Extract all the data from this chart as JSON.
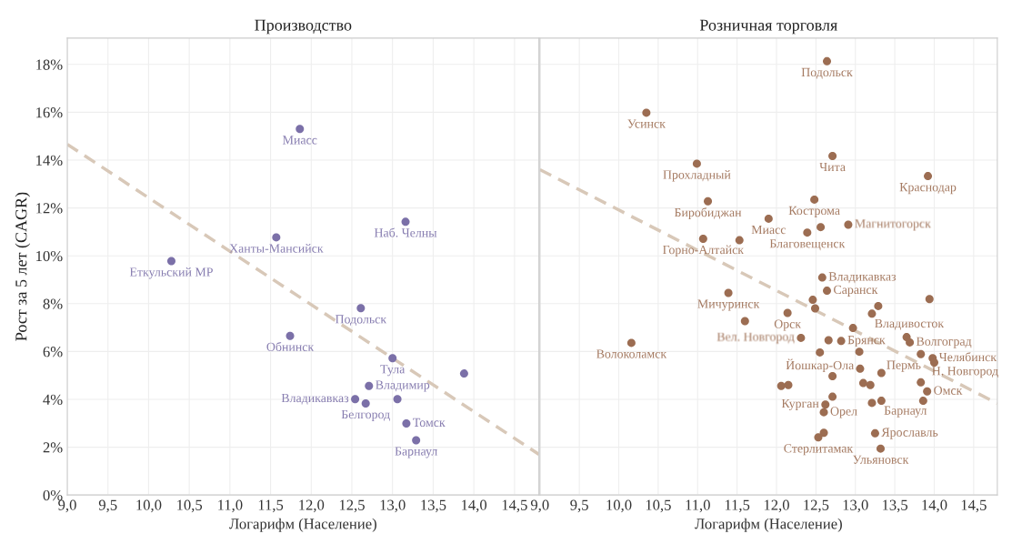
{
  "chart_data": [
    {
      "type": "scatter",
      "title": "Производство",
      "xlabel": "Логарифм (Население)",
      "ylabel": "Рост за 5 лет (CAGR)",
      "xlim": [
        9.0,
        14.8
      ],
      "ylim": [
        0,
        19.1
      ],
      "xticks": [
        {
          "value": 9.0,
          "label": "9,0"
        },
        {
          "value": 9.5,
          "label": "9,5"
        },
        {
          "value": 10.0,
          "label": "10,0"
        },
        {
          "value": 10.5,
          "label": "10,5"
        },
        {
          "value": 11.0,
          "label": "11,0"
        },
        {
          "value": 11.5,
          "label": "11,5"
        },
        {
          "value": 12.0,
          "label": "12,0"
        },
        {
          "value": 12.5,
          "label": "12,5"
        },
        {
          "value": 13.0,
          "label": "13,0"
        },
        {
          "value": 13.5,
          "label": "13,5"
        },
        {
          "value": 14.0,
          "label": "14,0"
        },
        {
          "value": 14.5,
          "label": "14,5"
        }
      ],
      "yticks": [
        {
          "value": 0,
          "label": "0%"
        },
        {
          "value": 2,
          "label": "2%"
        },
        {
          "value": 4,
          "label": "4%"
        },
        {
          "value": 6,
          "label": "6%"
        },
        {
          "value": 8,
          "label": "8%"
        },
        {
          "value": 10,
          "label": "10%"
        },
        {
          "value": 12,
          "label": "12%"
        },
        {
          "value": 14,
          "label": "14%"
        },
        {
          "value": 16,
          "label": "16%"
        },
        {
          "value": 18,
          "label": "18%"
        }
      ],
      "grid": true,
      "legend": false,
      "marker": "circle",
      "series": [
        {
          "type": "scatter",
          "color": "#7b70a8",
          "x": [
            11.86,
            11.57,
            13.16,
            10.28,
            12.61,
            11.74,
            13.0,
            13.88,
            12.71,
            12.54,
            12.67,
            13.06,
            13.17,
            13.29
          ],
          "values": [
            15.3,
            10.77,
            11.42,
            9.78,
            7.81,
            6.65,
            5.72,
            5.08,
            4.56,
            4.01,
            3.83,
            4.01,
            2.99,
            2.29
          ]
        },
        {
          "type": "line",
          "color": "#d8c8b8",
          "line_style": "dashed",
          "marker": "none",
          "x": [
            9.0,
            14.8
          ],
          "values": [
            14.66,
            1.7
          ]
        }
      ],
      "annotations": [
        {
          "text": "Миасс",
          "x": 11.86,
          "y": 15.3
        },
        {
          "text": "Ханты-Мансийск",
          "x": 11.57,
          "y": 10.77
        },
        {
          "text": "Наб. Челны",
          "x": 13.16,
          "y": 11.42
        },
        {
          "text": "Еткульский МР",
          "x": 10.28,
          "y": 9.78
        },
        {
          "text": "Подольск",
          "x": 12.61,
          "y": 7.81
        },
        {
          "text": "Обнинск",
          "x": 11.74,
          "y": 6.65
        },
        {
          "text": "Тула",
          "x": 13.0,
          "y": 5.72
        },
        {
          "text": "Владимир",
          "x": 12.71,
          "y": 4.56
        },
        {
          "text": "Владикавказ",
          "x": 12.54,
          "y": 4.01
        },
        {
          "text": "Белгород",
          "x": 12.67,
          "y": 3.83
        },
        {
          "text": "Томск",
          "x": 13.17,
          "y": 2.99
        },
        {
          "text": "Барнаул",
          "x": 13.29,
          "y": 2.29
        }
      ]
    },
    {
      "type": "scatter",
      "title": "Розничная торговля",
      "xlabel": "Логарифм (Население)",
      "xlim": [
        9.0,
        14.8
      ],
      "ylim": [
        0,
        19.1
      ],
      "tick_labels": "x",
      "xticks": [
        {
          "value": 9.0,
          "label": "9,0"
        },
        {
          "value": 9.5,
          "label": "9,5"
        },
        {
          "value": 10.0,
          "label": "10,0"
        },
        {
          "value": 10.5,
          "label": "10,5"
        },
        {
          "value": 11.0,
          "label": "11,0"
        },
        {
          "value": 11.5,
          "label": "11,5"
        },
        {
          "value": 12.0,
          "label": "12,0"
        },
        {
          "value": 12.5,
          "label": "12,5"
        },
        {
          "value": 13.0,
          "label": "13,0"
        },
        {
          "value": 13.5,
          "label": "13,5"
        },
        {
          "value": 14.0,
          "label": "14,0"
        },
        {
          "value": 14.5,
          "label": "14,5"
        }
      ],
      "grid": true,
      "legend": false,
      "marker": "circle",
      "series": [
        {
          "type": "scatter",
          "color": "#9c6d52",
          "x": [
            12.64,
            10.35,
            12.71,
            10.99,
            13.92,
            11.13,
            12.48,
            11.9,
            12.56,
            12.91,
            12.39,
            11.07,
            11.53,
            12.58,
            12.64,
            11.39,
            13.94,
            12.46,
            13.29,
            12.49,
            12.14,
            13.21,
            11.6,
            12.97,
            12.31,
            12.66,
            12.82,
            13.65,
            13.69,
            10.16,
            12.55,
            13.05,
            13.83,
            13.98,
            14.0,
            13.06,
            13.33,
            12.71,
            13.1,
            13.19,
            13.83,
            12.06,
            12.15,
            13.91,
            12.71,
            13.33,
            13.86,
            12.62,
            13.21,
            12.6,
            13.25,
            12.6,
            12.53,
            13.32
          ],
          "values": [
            18.13,
            15.98,
            14.17,
            13.85,
            13.33,
            12.28,
            12.35,
            11.55,
            11.2,
            11.3,
            10.97,
            10.71,
            10.65,
            9.09,
            8.54,
            8.45,
            8.19,
            8.16,
            7.9,
            7.8,
            7.61,
            7.58,
            7.27,
            6.98,
            6.57,
            6.47,
            6.44,
            6.6,
            6.38,
            6.36,
            5.96,
            5.99,
            5.89,
            5.72,
            5.54,
            5.28,
            5.1,
            4.97,
            4.68,
            4.6,
            4.71,
            4.56,
            4.6,
            4.33,
            4.11,
            3.94,
            3.94,
            3.78,
            3.85,
            3.46,
            2.58,
            2.6,
            2.41,
            1.94
          ]
        },
        {
          "type": "line",
          "color": "#d8c8b8",
          "line_style": "dashed",
          "marker": "none",
          "x": [
            9.0,
            14.8
          ],
          "values": [
            13.6,
            3.83
          ]
        }
      ],
      "annotations": [
        {
          "text": "Подольск",
          "x": 12.64,
          "y": 18.13
        },
        {
          "text": "Усинск",
          "x": 10.35,
          "y": 15.98
        },
        {
          "text": "Чита",
          "x": 12.71,
          "y": 14.17
        },
        {
          "text": "Прохладный",
          "x": 10.99,
          "y": 13.85
        },
        {
          "text": "Краснодар",
          "x": 13.92,
          "y": 13.33
        },
        {
          "text": "Биробиджан",
          "x": 11.13,
          "y": 12.28
        },
        {
          "text": "Кострома",
          "x": 12.48,
          "y": 12.35
        },
        {
          "text": "Миасс",
          "x": 11.9,
          "y": 11.55
        },
        {
          "text": "Магнитогорск",
          "x": 12.91,
          "y": 11.3
        },
        {
          "text": "Благовещенск",
          "x": 12.39,
          "y": 10.97
        },
        {
          "text": "Горно-Алтайск",
          "x": 11.07,
          "y": 10.71
        },
        {
          "text": "Владикавказ",
          "x": 12.58,
          "y": 9.09
        },
        {
          "text": "Саранск",
          "x": 12.64,
          "y": 8.54
        },
        {
          "text": "Мичуринск",
          "x": 11.39,
          "y": 8.45
        },
        {
          "text": "Орск",
          "x": 12.14,
          "y": 7.61
        },
        {
          "text": "Владивосток",
          "x": 13.21,
          "y": 7.58
        },
        {
          "text": "Вел. Новгород",
          "x": 12.31,
          "y": 6.57
        },
        {
          "text": "Брянск",
          "x": 12.82,
          "y": 6.44
        },
        {
          "text": "Волгоград",
          "x": 13.69,
          "y": 6.38
        },
        {
          "text": "Волоколамск",
          "x": 10.16,
          "y": 6.36
        },
        {
          "text": "Йошкар-Ола",
          "x": 12.55,
          "y": 5.96
        },
        {
          "text": "Челябинск",
          "x": 13.98,
          "y": 5.72
        },
        {
          "text": "Н. Новгород",
          "x": 14.0,
          "y": 5.54
        },
        {
          "text": "Пермь",
          "x": 13.33,
          "y": 5.1
        },
        {
          "text": "Омск",
          "x": 13.91,
          "y": 4.33
        },
        {
          "text": "Курган",
          "x": 12.62,
          "y": 3.78
        },
        {
          "text": "Барнаул",
          "x": 13.33,
          "y": 3.94
        },
        {
          "text": "Орел",
          "x": 12.6,
          "y": 3.46
        },
        {
          "text": "Ярославль",
          "x": 13.25,
          "y": 2.58
        },
        {
          "text": "Стерлитамак",
          "x": 12.53,
          "y": 2.41
        },
        {
          "text": "Ульяновск",
          "x": 13.32,
          "y": 1.94
        }
      ]
    }
  ]
}
